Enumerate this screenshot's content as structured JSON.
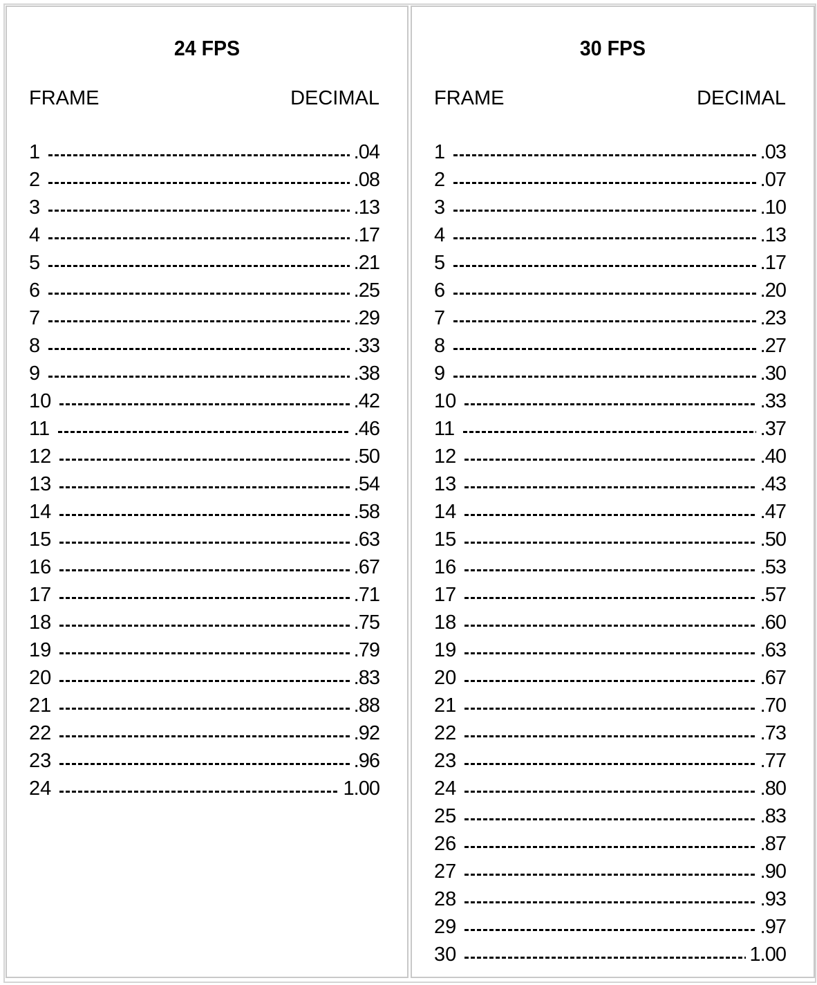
{
  "tables": [
    {
      "title": "24 FPS",
      "col_frame": "FRAME",
      "col_decimal": "DECIMAL",
      "rows": [
        [
          "1",
          ".04"
        ],
        [
          "2",
          ".08"
        ],
        [
          "3",
          ".13"
        ],
        [
          "4",
          ".17"
        ],
        [
          "5",
          ".21"
        ],
        [
          "6",
          ".25"
        ],
        [
          "7",
          ".29"
        ],
        [
          "8",
          ".33"
        ],
        [
          "9",
          ".38"
        ],
        [
          "10",
          ".42"
        ],
        [
          "11",
          ".46"
        ],
        [
          "12",
          ".50"
        ],
        [
          "13",
          ".54"
        ],
        [
          "14",
          ".58"
        ],
        [
          "15",
          ".63"
        ],
        [
          "16",
          ".67"
        ],
        [
          "17",
          ".71"
        ],
        [
          "18",
          ".75"
        ],
        [
          "19",
          ".79"
        ],
        [
          "20",
          ".83"
        ],
        [
          "21",
          ".88"
        ],
        [
          "22",
          ".92"
        ],
        [
          "23",
          ".96"
        ],
        [
          "24",
          "1.00"
        ]
      ]
    },
    {
      "title": "30 FPS",
      "col_frame": "FRAME",
      "col_decimal": "DECIMAL",
      "rows": [
        [
          "1",
          ".03"
        ],
        [
          "2",
          ".07"
        ],
        [
          "3",
          ".10"
        ],
        [
          "4",
          ".13"
        ],
        [
          "5",
          ".17"
        ],
        [
          "6",
          ".20"
        ],
        [
          "7",
          ".23"
        ],
        [
          "8",
          ".27"
        ],
        [
          "9",
          ".30"
        ],
        [
          "10",
          ".33"
        ],
        [
          "11",
          ".37"
        ],
        [
          "12",
          ".40"
        ],
        [
          "13",
          ".43"
        ],
        [
          "14",
          ".47"
        ],
        [
          "15",
          ".50"
        ],
        [
          "16",
          ".53"
        ],
        [
          "17",
          ".57"
        ],
        [
          "18",
          ".60"
        ],
        [
          "19",
          ".63"
        ],
        [
          "20",
          ".67"
        ],
        [
          "21",
          ".70"
        ],
        [
          "22",
          ".73"
        ],
        [
          "23",
          ".77"
        ],
        [
          "24",
          ".80"
        ],
        [
          "25",
          ".83"
        ],
        [
          "26",
          ".87"
        ],
        [
          "27",
          ".90"
        ],
        [
          "28",
          ".93"
        ],
        [
          "29",
          ".97"
        ],
        [
          "30",
          "1.00"
        ]
      ]
    }
  ]
}
